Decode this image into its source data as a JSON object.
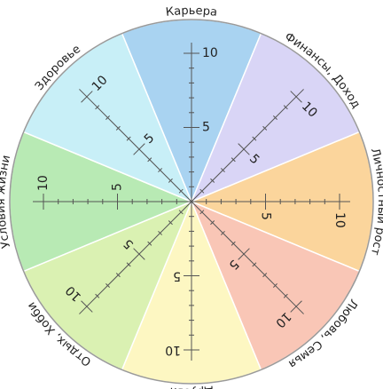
{
  "sectors": [
    {
      "label": "Карьера",
      "color": "#a9d3f1"
    },
    {
      "label": "Финансы, Доход",
      "color": "#d9d5f6"
    },
    {
      "label": "Личностный рост",
      "color": "#fbd59c"
    },
    {
      "label": "Любовь, Семья",
      "color": "#f9c6b6"
    },
    {
      "label": "Друзья",
      "color": "#fdf7c2"
    },
    {
      "label": "Отдых, Хобби",
      "color": "#daf1b2"
    },
    {
      "label": "Условия жизни",
      "color": "#b8eab4"
    },
    {
      "label": "Здоровье",
      "color": "#c8eff7"
    }
  ],
  "scale": {
    "ticks": [
      5,
      10
    ]
  }
}
